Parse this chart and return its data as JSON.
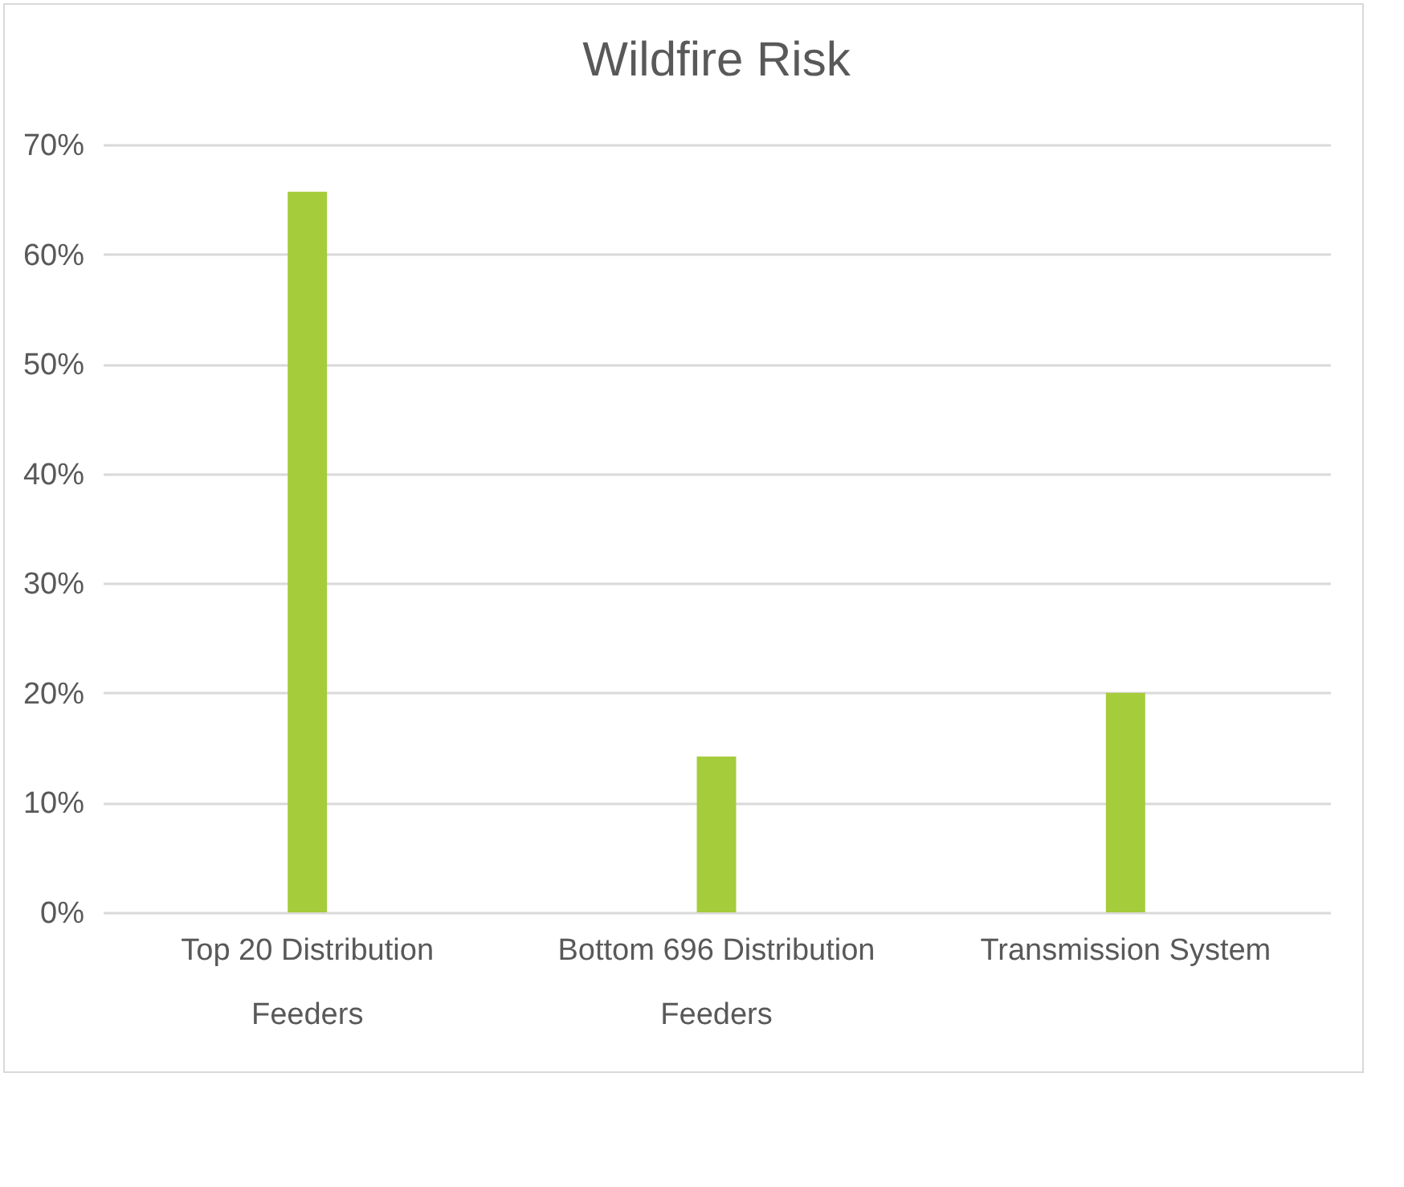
{
  "chart_data": {
    "type": "bar",
    "title": "Wildfire Risk",
    "categories": [
      "Top 20 Distribution Feeders",
      "Bottom 696 Distribution Feeders",
      "Transmission System"
    ],
    "values": [
      65.7,
      14.2,
      20.0
    ],
    "color": "#a5cc3a",
    "ylim": [
      0,
      70
    ],
    "yticks": [
      {
        "value": 0,
        "label": "0%"
      },
      {
        "value": 10,
        "label": "10%"
      },
      {
        "value": 20,
        "label": "20%"
      },
      {
        "value": 30,
        "label": "30%"
      },
      {
        "value": 40,
        "label": "40%"
      },
      {
        "value": 50,
        "label": "50%"
      },
      {
        "value": 60,
        "label": "60%"
      },
      {
        "value": 70,
        "label": "70%"
      }
    ],
    "grid": "y"
  }
}
